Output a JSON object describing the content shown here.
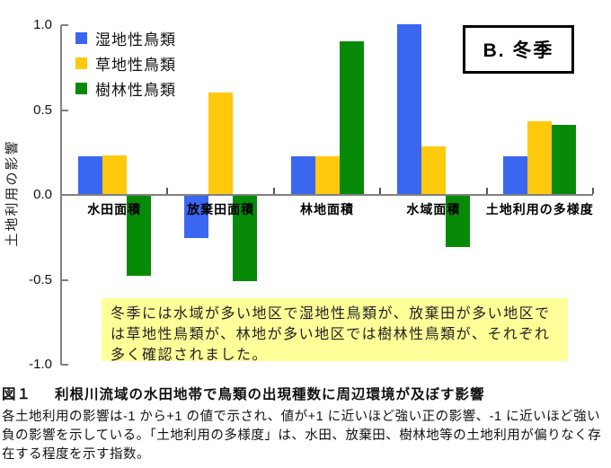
{
  "chart_data": {
    "type": "bar",
    "title": "B. 冬季",
    "categories": [
      "水田面積",
      "放棄田面積",
      "林地面積",
      "水域面積",
      "土地利用の多様度"
    ],
    "series": [
      {
        "name": "湿地性鳥類",
        "color": "#3A66F0",
        "values": [
          0.22,
          -0.25,
          0.22,
          1.0,
          0.22
        ]
      },
      {
        "name": "草地性鳥類",
        "color": "#FFC90E",
        "values": [
          0.23,
          0.6,
          0.22,
          0.28,
          0.43
        ]
      },
      {
        "name": "樹林性鳥類",
        "color": "#078A07",
        "values": [
          -0.47,
          -0.5,
          0.9,
          -0.3,
          0.41
        ]
      }
    ],
    "xlabel": "",
    "ylabel": "土地利用の影響",
    "ylim": [
      -1.0,
      1.0
    ],
    "yticks": [
      1.0,
      0.5,
      0.0,
      -0.5,
      -1.0
    ],
    "ytick_labels": [
      "1.0",
      "0.5",
      "0.0",
      "-0.5",
      "-1.0"
    ],
    "legend_position": "upper-left inside plot",
    "grid": false,
    "axis_color": "#808080"
  },
  "annotation": {
    "text": "冬季には水域が多い地区で湿地性鳥類が、放棄田が多い地区では草地性鳥類が、林地が多い地区では樹林性鳥類が、それぞれ多く確認されました。",
    "background": "#FFFF99"
  },
  "caption": {
    "label": "図１",
    "title": "利根川流域の水田地帯で鳥類の出現種数に周辺環境が及ぼす影響",
    "body": "各土地利用の影響は-1 から+1 の値で示され、値が+1 に近いほど強い正の影響、-1 に近いほど強い負の影響を示している。「土地利用の多様度」は、水田、放棄田、樹林地等の土地利用が偏りなく存在する程度を示す指数。"
  }
}
